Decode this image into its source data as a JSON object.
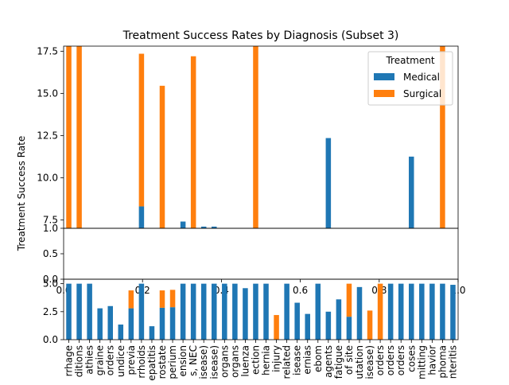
{
  "chart_data": {
    "type": "bar",
    "stacked": true,
    "title": "Treatment Success Rates by Diagnosis (Subset 3)",
    "ylabel": "Treatment Success Rate",
    "legend": {
      "title": "Treatment",
      "placement": "top-right"
    },
    "series": [
      {
        "name": "Medical",
        "color": "#1f77b4"
      },
      {
        "name": "Surgical",
        "color": "#ff7f0e"
      }
    ],
    "categories": [
      "rrhage",
      "ditions",
      "athies",
      "graine",
      "orders",
      "undice",
      "previa",
      "rrhoids",
      "epatitis",
      "rostate",
      "perium",
      "ension",
      "s, NEC",
      "isease)",
      "isease)",
      "organs",
      "organs",
      "luenza",
      "ection",
      "hernia",
      "injury",
      "related",
      "isease",
      "ernias",
      "ebom",
      "agents",
      "fatigue",
      "of site",
      "utation",
      "isease)",
      "orders",
      "orders",
      "orders",
      "coses",
      "mitting",
      "havior",
      "phoma",
      "nteritis"
    ],
    "panels": [
      {
        "ylim": [
          7.0,
          17.8
        ],
        "yticks": [
          "7.5",
          "10.0",
          "12.5",
          "15.0",
          "17.5"
        ],
        "bars": [
          {
            "medical": 0,
            "surgical": 13.05
          },
          {
            "medical": 0,
            "surgical": 12.3
          },
          null,
          null,
          null,
          null,
          null,
          {
            "medical": 8.3,
            "surgical": 9.05
          },
          null,
          {
            "medical": 0,
            "surgical": 8.45
          },
          null,
          {
            "medical": 7.4,
            "surgical": 0
          },
          {
            "medical": 0,
            "surgical": 10.2
          },
          {
            "medical": 7.1,
            "surgical": 0
          },
          {
            "medical": 7.1,
            "surgical": 0
          },
          null,
          null,
          null,
          {
            "medical": 0,
            "surgical": 13.3
          },
          null,
          null,
          null,
          null,
          null,
          null,
          {
            "medical": 12.35,
            "surgical": 0
          },
          null,
          null,
          null,
          null,
          null,
          null,
          null,
          {
            "medical": 11.25,
            "surgical": 0
          },
          null,
          null,
          {
            "medical": 0,
            "surgical": 13.0
          },
          null
        ]
      },
      {
        "ylim": [
          0.0,
          1.0
        ],
        "yticks": [
          "0.0",
          "0.5",
          "1.0"
        ],
        "xlim": [
          0.0,
          1.0
        ],
        "xticks": [
          "0.0",
          "0.2",
          "0.4",
          "0.6",
          "0.8",
          "1.0"
        ]
      },
      {
        "ylim": [
          0.0,
          5.4
        ],
        "yticks": [
          "0.0",
          "2.5",
          "5.0"
        ],
        "bars": [
          {
            "medical": 5.0,
            "surgical": 0
          },
          {
            "medical": 5.0,
            "surgical": 0
          },
          {
            "medical": 5.0,
            "surgical": 0
          },
          {
            "medical": 2.8,
            "surgical": 0
          },
          {
            "medical": 3.0,
            "surgical": 0
          },
          {
            "medical": 1.35,
            "surgical": 0
          },
          {
            "medical": 2.8,
            "surgical": 1.6
          },
          {
            "medical": 5.0,
            "surgical": 0
          },
          {
            "medical": 1.2,
            "surgical": 0
          },
          {
            "medical": 2.85,
            "surgical": 1.55
          },
          {
            "medical": 2.9,
            "surgical": 1.55
          },
          {
            "medical": 5.0,
            "surgical": 0
          },
          {
            "medical": 5.0,
            "surgical": 0
          },
          {
            "medical": 5.0,
            "surgical": 0
          },
          {
            "medical": 5.0,
            "surgical": 0
          },
          {
            "medical": 5.0,
            "surgical": 0
          },
          {
            "medical": 5.0,
            "surgical": 0
          },
          {
            "medical": 4.6,
            "surgical": 0
          },
          {
            "medical": 5.0,
            "surgical": 0
          },
          {
            "medical": 5.0,
            "surgical": 0
          },
          {
            "medical": 0,
            "surgical": 2.2
          },
          {
            "medical": 5.0,
            "surgical": 0
          },
          {
            "medical": 3.3,
            "surgical": 0
          },
          {
            "medical": 2.3,
            "surgical": 0
          },
          {
            "medical": 5.0,
            "surgical": 0
          },
          {
            "medical": 2.5,
            "surgical": 0
          },
          {
            "medical": 3.6,
            "surgical": 0
          },
          {
            "medical": 2.05,
            "surgical": 2.95
          },
          {
            "medical": 4.7,
            "surgical": 0
          },
          {
            "medical": 0,
            "surgical": 2.6
          },
          {
            "medical": 0,
            "surgical": 5.0
          },
          {
            "medical": 5.0,
            "surgical": 0
          },
          {
            "medical": 5.0,
            "surgical": 0
          },
          {
            "medical": 5.0,
            "surgical": 0
          },
          {
            "medical": 5.0,
            "surgical": 0
          },
          {
            "medical": 5.0,
            "surgical": 0
          },
          {
            "medical": 5.0,
            "surgical": 0
          },
          {
            "medical": 4.9,
            "surgical": 0
          }
        ]
      }
    ]
  }
}
